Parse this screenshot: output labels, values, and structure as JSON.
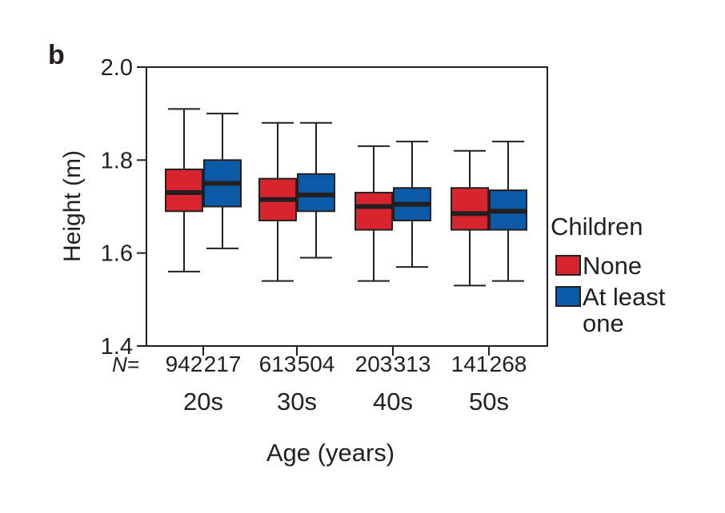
{
  "panel_label": "b",
  "chart_data": {
    "type": "box",
    "ylabel": "Height (m)",
    "xlabel": "Age (years)",
    "ylim": [
      1.4,
      2.0
    ],
    "yticks": [
      1.4,
      1.6,
      1.8,
      2.0
    ],
    "ytick_labels": [
      "1.4",
      "1.6",
      "1.8",
      "2.0"
    ],
    "n_prefix": "N=",
    "categories": [
      "20s",
      "30s",
      "40s",
      "50s"
    ],
    "legend_title": "Children",
    "legend_position": "right",
    "series": [
      {
        "name": "None",
        "color": "#d8242f",
        "n": [
          "942",
          "613",
          "203",
          "141"
        ],
        "boxes": [
          {
            "whisker_low": 1.56,
            "q1": 1.69,
            "median": 1.73,
            "q3": 1.78,
            "whisker_high": 1.91
          },
          {
            "whisker_low": 1.54,
            "q1": 1.67,
            "median": 1.715,
            "q3": 1.76,
            "whisker_high": 1.88
          },
          {
            "whisker_low": 1.54,
            "q1": 1.65,
            "median": 1.7,
            "q3": 1.73,
            "whisker_high": 1.83
          },
          {
            "whisker_low": 1.53,
            "q1": 1.65,
            "median": 1.685,
            "q3": 1.74,
            "whisker_high": 1.82
          }
        ]
      },
      {
        "name": "At least one",
        "name_lines": [
          "At least",
          "one"
        ],
        "color": "#0c5aa6",
        "n": [
          "217",
          "504",
          "313",
          "268"
        ],
        "boxes": [
          {
            "whisker_low": 1.61,
            "q1": 1.7,
            "median": 1.75,
            "q3": 1.8,
            "whisker_high": 1.9
          },
          {
            "whisker_low": 1.59,
            "q1": 1.69,
            "median": 1.725,
            "q3": 1.77,
            "whisker_high": 1.88
          },
          {
            "whisker_low": 1.57,
            "q1": 1.67,
            "median": 1.705,
            "q3": 1.74,
            "whisker_high": 1.84
          },
          {
            "whisker_low": 1.54,
            "q1": 1.65,
            "median": 1.69,
            "q3": 1.735,
            "whisker_high": 1.84
          }
        ]
      }
    ]
  }
}
